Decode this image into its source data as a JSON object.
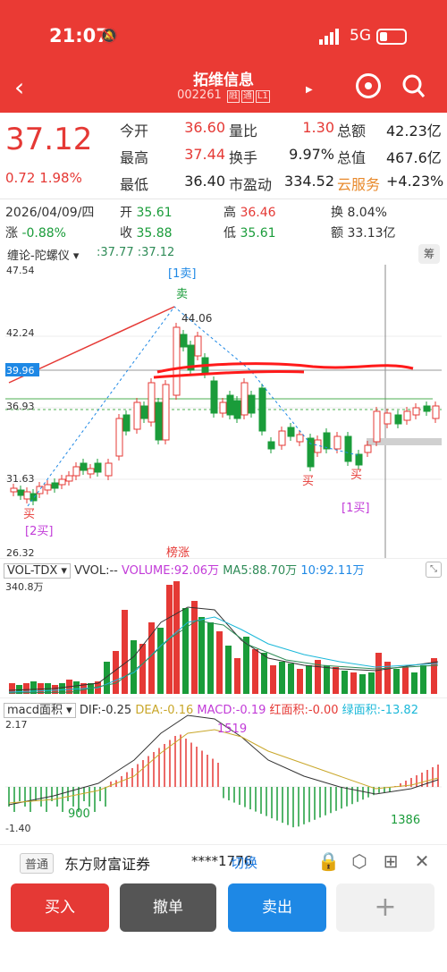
{
  "status_bar": {
    "time": "21:07",
    "network": "5G"
  },
  "header": {
    "title": "拓维信息",
    "code": "002261",
    "tags": [
      "融",
      "通",
      "L1"
    ]
  },
  "quote": {
    "price": "37.12",
    "change": "0.72",
    "change_pct": "1.98%",
    "rows": [
      [
        {
          "label": "今开",
          "value": "36.60"
        },
        {
          "label": "量比",
          "value": "1.30"
        },
        {
          "label": "总额",
          "value": "42.23亿"
        }
      ],
      [
        {
          "label": "最高",
          "value": "37.44"
        },
        {
          "label": "换手",
          "value": "9.97%"
        },
        {
          "label": "总值",
          "value": "467.6亿"
        }
      ],
      [
        {
          "label": "最低",
          "value": "36.40"
        },
        {
          "label": "市盈动",
          "value": "334.52"
        },
        {
          "label": "云服务",
          "value": "+4.23%"
        }
      ]
    ]
  },
  "day_info": {
    "date": "2026/04/09/四",
    "open_label": "开",
    "open": "35.61",
    "high_label": "高",
    "high": "36.46",
    "turnover_label": "换",
    "turnover": "8.04%",
    "change_label": "涨",
    "change": "-0.88%",
    "close_label": "收",
    "close": "35.88",
    "low_label": "低",
    "low": "35.61",
    "amount_label": "额",
    "amount": "33.13亿"
  },
  "kline_toolbar": {
    "indicator": "缠论-陀螺仪",
    "ma_values": ":37.77 :37.12",
    "chip_button": "筹"
  },
  "kline_labels": {
    "y_ticks": [
      "47.54",
      "42.24",
      "39.96",
      "36.93",
      "31.63",
      "26.32"
    ],
    "peak_value": "44.06",
    "sell_top_label": "[1卖]",
    "sell_mark": "卖",
    "buy_mark": "买",
    "buy2_label": "[2买]",
    "buy1_label": "[1买]",
    "bangzhang": "榜涨"
  },
  "volume": {
    "indicator": "VOL-TDX",
    "vvol": "VVOL:--",
    "volume": "VOLUME:92.06万",
    "ma5": "MA5:88.70万",
    "ma10": "10:92.11万",
    "y_max": "340.8万"
  },
  "macd": {
    "indicator": "macd面积",
    "dif": "DIF:-0.25",
    "dea": "DEA:-0.16",
    "macd": "MACD:-0.19",
    "red_area": "红面积:-0.00",
    "green_area": "绿面积:-13.82",
    "y_max": "2.17",
    "y_min": "-1.40",
    "label_900": "900",
    "label_1519": "1519",
    "label_1386": "1386"
  },
  "broker": {
    "tag": "普通",
    "name": "东方财富证券",
    "account": "****1776",
    "switch": "切换"
  },
  "actions": {
    "buy": "买入",
    "cancel": "撤单",
    "sell": "卖出",
    "plus": "+"
  },
  "colors": {
    "header": "#ea3a34",
    "up": "#e53935",
    "down": "#1a9c3a",
    "blue": "#1e88e5"
  }
}
